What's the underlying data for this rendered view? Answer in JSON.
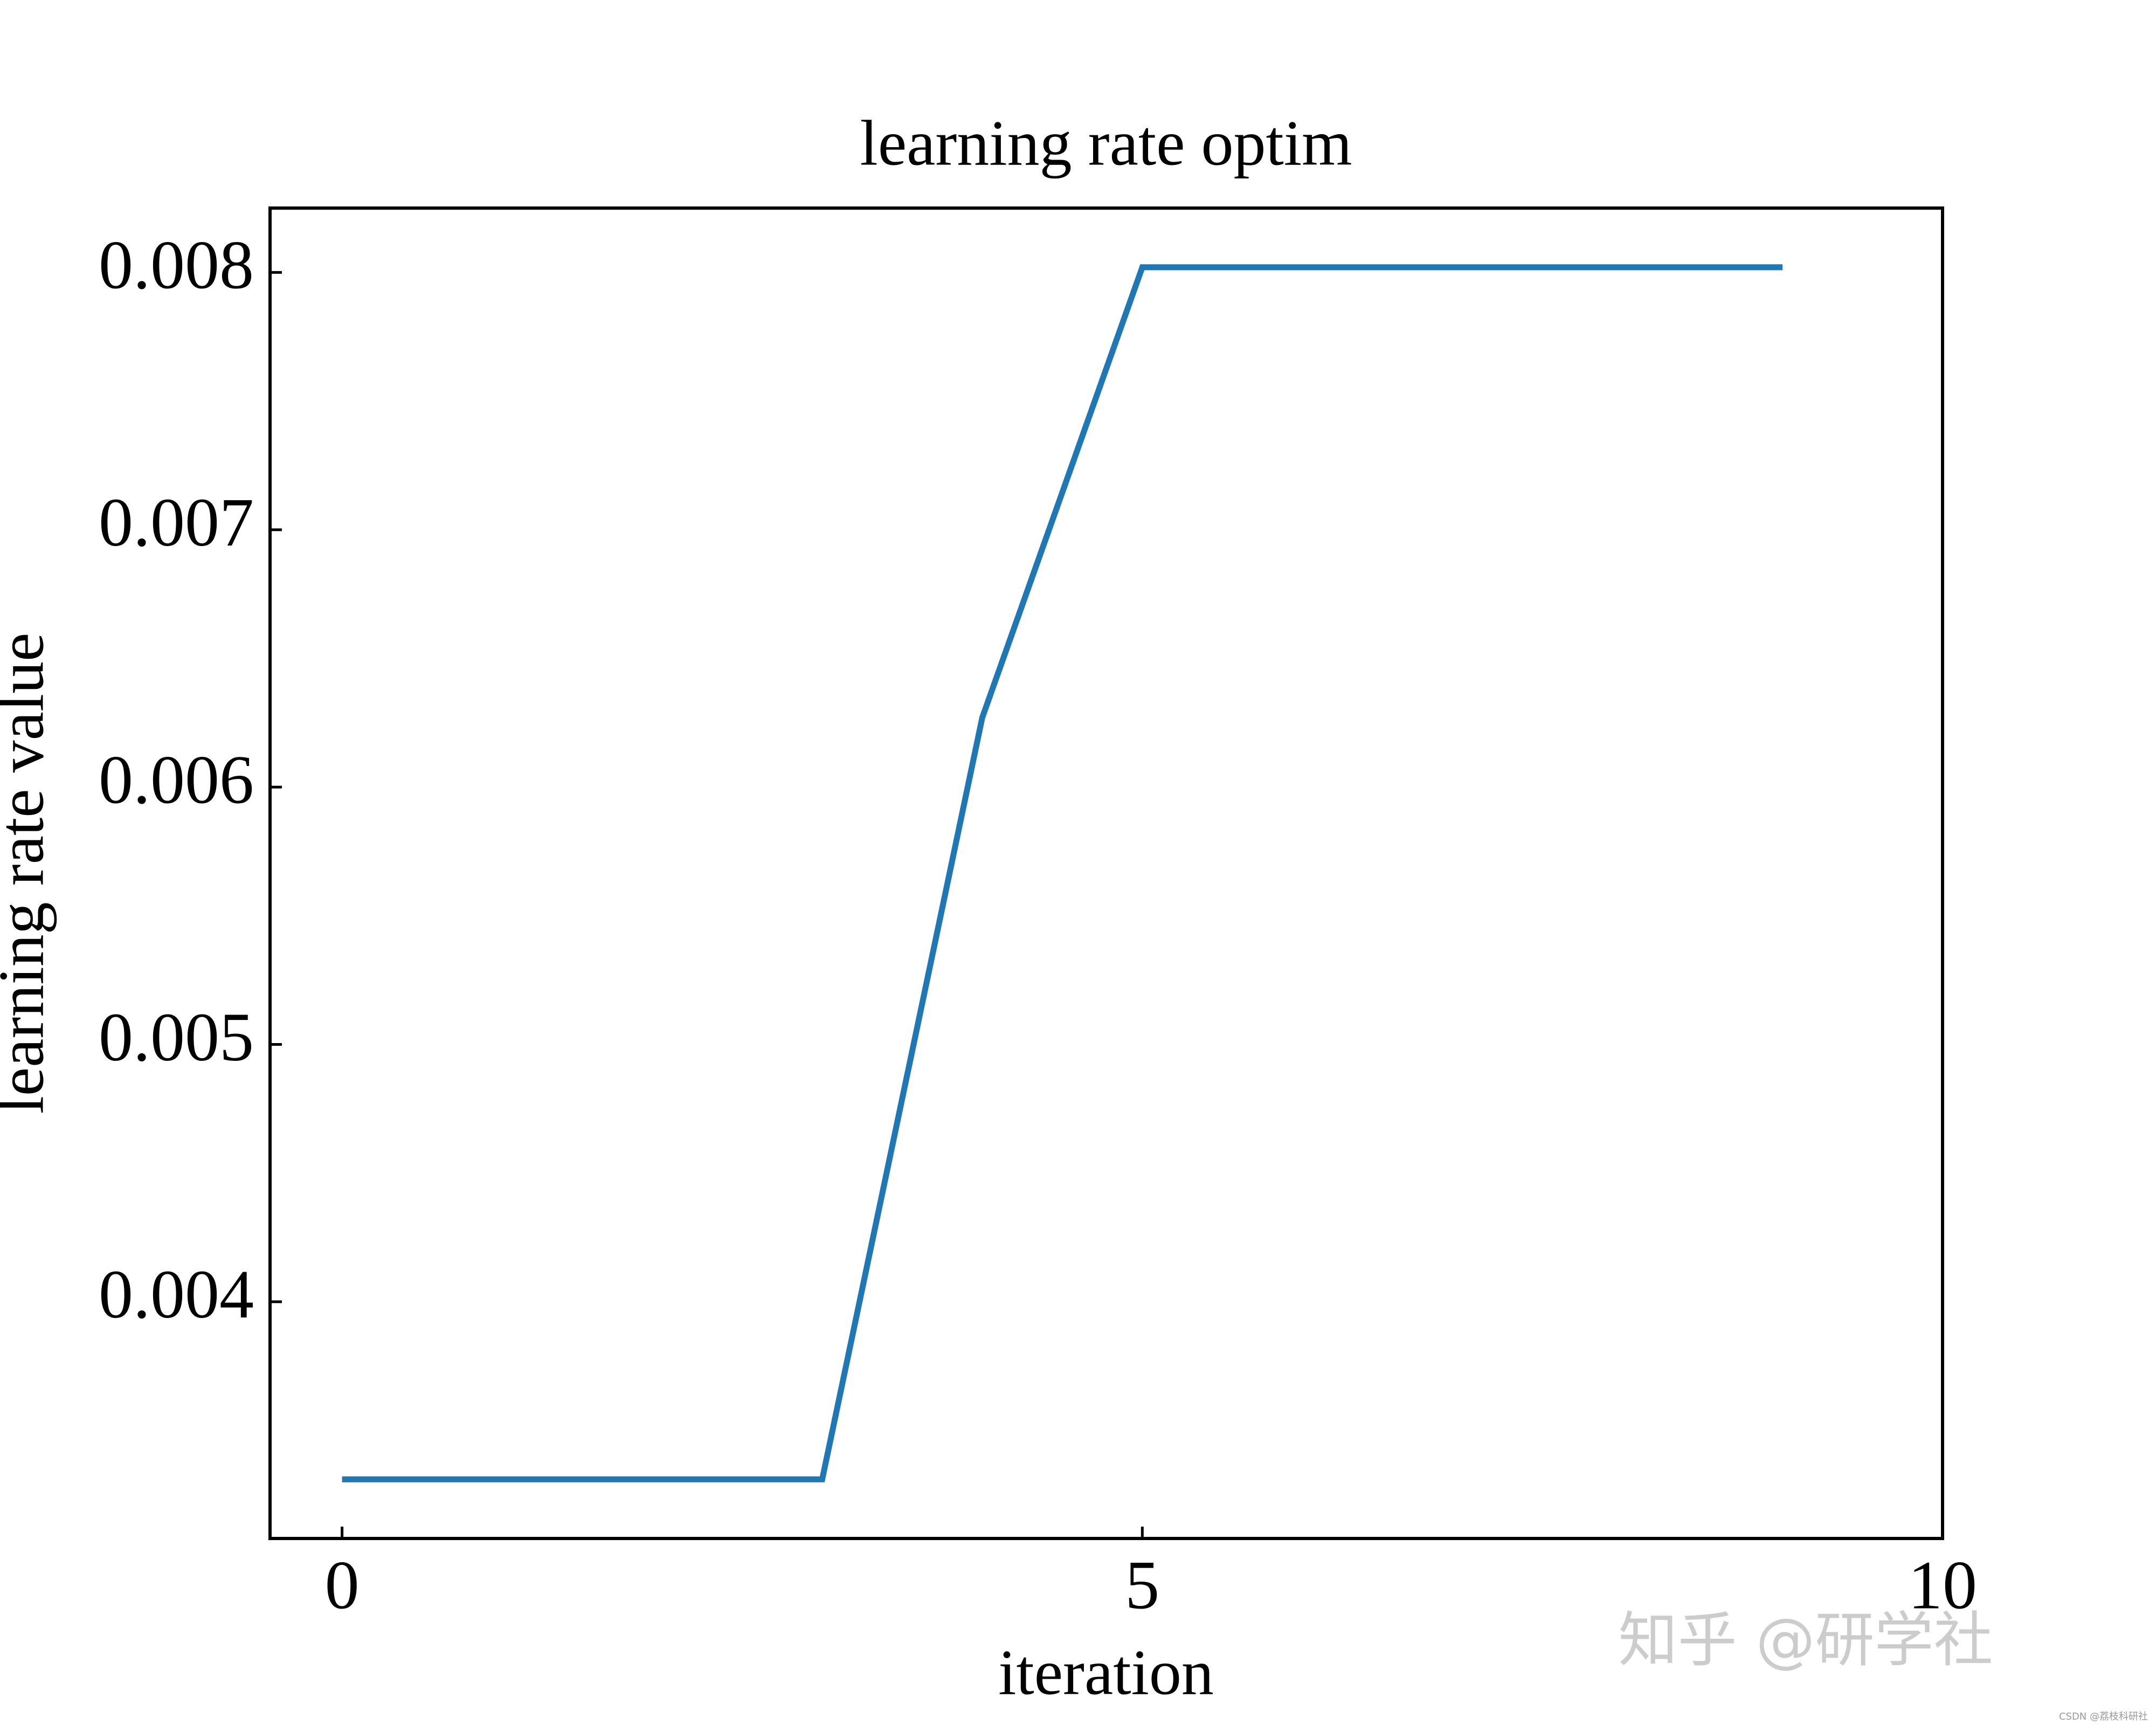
{
  "chart_data": {
    "type": "line",
    "title": "learning rate optim",
    "x_label": "iteration",
    "y_label": "learning rate value",
    "x": [
      0,
      1,
      2,
      3,
      4,
      5,
      6,
      7,
      8,
      9
    ],
    "values": [
      0.00331,
      0.00331,
      0.00331,
      0.00331,
      0.00627,
      0.00802,
      0.00802,
      0.00802,
      0.00802,
      0.00802
    ],
    "color": "#1f77b4",
    "xlim": [
      -0.45,
      10
    ],
    "xticks": [
      0,
      5,
      10
    ],
    "ylim": [
      0.00308,
      0.00825
    ],
    "yticks": [
      0.004,
      0.005,
      0.006,
      0.007,
      0.008
    ],
    "grid": false,
    "watermark": "知乎 @研学社",
    "source_watermark": "CSDN @荔枝科研社"
  }
}
